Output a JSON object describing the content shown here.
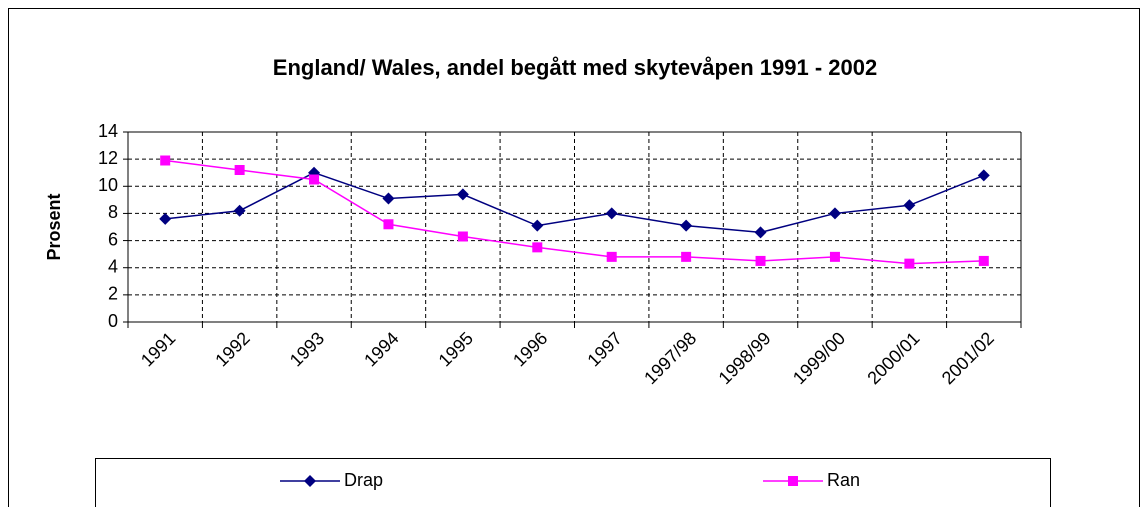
{
  "chart_data": {
    "type": "line",
    "title": "England/ Wales, andel begått med skytevåpen 1991 - 2002",
    "y_label": "Prosent",
    "categories": [
      "1991",
      "1992",
      "1993",
      "1994",
      "1995",
      "1996",
      "1997",
      "1997/98",
      "1998/99",
      "1999/00",
      "2000/01",
      "2001/02"
    ],
    "series": [
      {
        "name": "Drap",
        "color": "#000080",
        "marker": "diamond",
        "values": [
          7.6,
          8.2,
          11.0,
          9.1,
          9.4,
          7.1,
          8.0,
          7.1,
          6.6,
          8.0,
          8.6,
          10.8
        ]
      },
      {
        "name": "Ran",
        "color": "#ff00ff",
        "marker": "square",
        "values": [
          11.9,
          11.2,
          10.5,
          7.2,
          6.3,
          5.5,
          4.8,
          4.8,
          4.5,
          4.8,
          4.3,
          4.5
        ]
      }
    ],
    "ylim": [
      0,
      14
    ],
    "yticks": [
      0,
      2,
      4,
      6,
      8,
      10,
      12,
      14
    ],
    "grid": true,
    "legend": "bottom"
  }
}
